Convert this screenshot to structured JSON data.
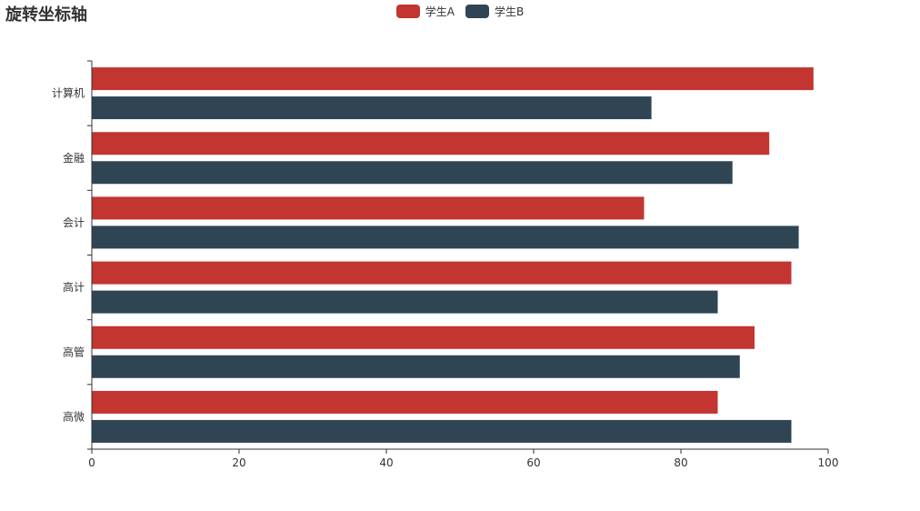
{
  "chart_data": {
    "type": "bar",
    "orientation": "horizontal",
    "title": "旋转坐标轴",
    "categories": [
      "计算机",
      "金融",
      "会计",
      "高计",
      "高管",
      "高微"
    ],
    "series": [
      {
        "name": "学生A",
        "color": "#c23531",
        "values": [
          98,
          92,
          75,
          95,
          90,
          85
        ]
      },
      {
        "name": "学生B",
        "color": "#2f4554",
        "values": [
          76,
          87,
          96,
          85,
          88,
          95
        ]
      }
    ],
    "xlim": [
      0,
      100
    ],
    "xticks": [
      0,
      20,
      40,
      60,
      80,
      100
    ],
    "grid": false,
    "legend_position": "top-center"
  }
}
